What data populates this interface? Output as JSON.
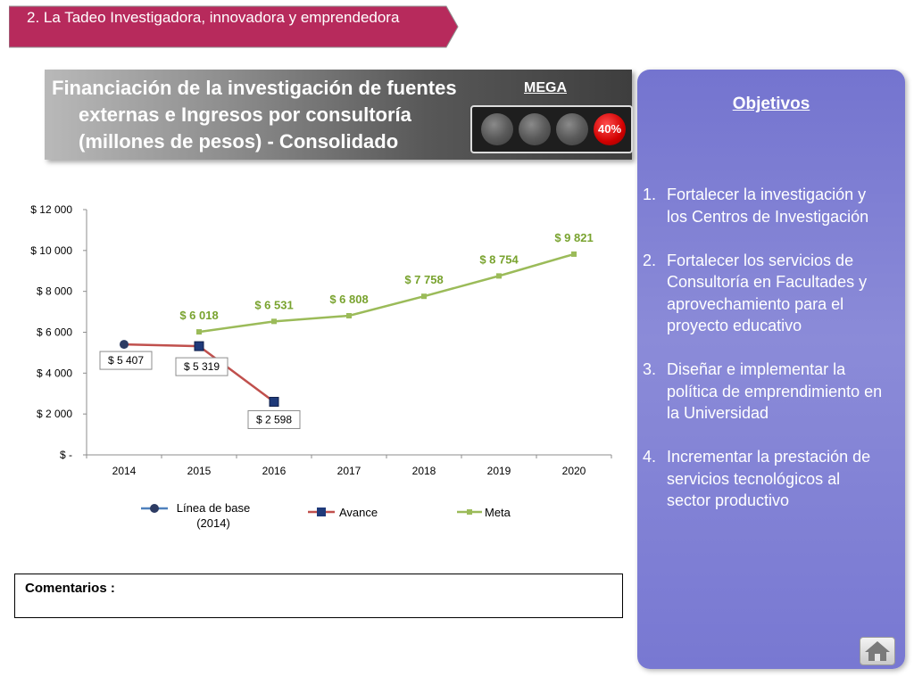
{
  "section": {
    "title": "2. La Tadeo Investigadora, innovadora y emprendedora",
    "color": "#b72a5c"
  },
  "header": {
    "title_line1": "Financiación de la investigación de fuentes",
    "title_line2": "externas e Ingresos por consultoría",
    "title_line3": "(millones de pesos) - Consolidado",
    "mega_label": "MEGA",
    "indicator_value": "40%"
  },
  "objectives": {
    "title": "Objetivos",
    "items": [
      {
        "n": "1.",
        "text": "Fortalecer la investigación y los Centros de Investigación"
      },
      {
        "n": "2.",
        "text": "Fortalecer los servicios de Consultoría en Facultades y aprovechamiento para el proyecto educativo"
      },
      {
        "n": "3.",
        "text": "Diseñar e implementar la política de emprendimiento en la Universidad"
      },
      {
        "n": "4.",
        "text": "Incrementar la prestación de servicios tecnológicos al sector productivo"
      }
    ],
    "home_icon": "home-icon"
  },
  "chart_data": {
    "type": "line",
    "categories": [
      "2014",
      "2015",
      "2016",
      "2017",
      "2018",
      "2019",
      "2020"
    ],
    "ylim": [
      0,
      12000
    ],
    "y_ticks": [
      {
        "value": 0,
        "label": "$ -"
      },
      {
        "value": 2000,
        "label": "$ 2 000"
      },
      {
        "value": 4000,
        "label": "$ 4 000"
      },
      {
        "value": 6000,
        "label": "$ 6 000"
      },
      {
        "value": 8000,
        "label": "$ 8 000"
      },
      {
        "value": 10000,
        "label": "$ 10 000"
      },
      {
        "value": 12000,
        "label": "$ 12 000"
      }
    ],
    "legend_position": "bottom",
    "series": [
      {
        "name": "Línea de base (2014)",
        "legend_line1": "Línea de base",
        "legend_line2": "(2014)",
        "color": "#c0504d",
        "marker": "#2d3b63",
        "points": [
          {
            "x": "2014",
            "y": 5407,
            "label": "$ 5 407"
          }
        ]
      },
      {
        "name": "Avance",
        "legend_line1": "Avance",
        "color": "#c0504d",
        "marker": "#1f3a7a",
        "points": [
          {
            "x": "2015",
            "y": 5319,
            "label": "$ 5 319"
          },
          {
            "x": "2016",
            "y": 2598,
            "label": "$ 2 598"
          }
        ]
      },
      {
        "name": "Meta",
        "legend_line1": "Meta",
        "color": "#9bbb59",
        "points": [
          {
            "x": "2015",
            "y": 6018,
            "label": "$ 6 018"
          },
          {
            "x": "2016",
            "y": 6531,
            "label": "$ 6 531"
          },
          {
            "x": "2017",
            "y": 6808,
            "label": "$ 6 808"
          },
          {
            "x": "2018",
            "y": 7758,
            "label": "$ 7 758"
          },
          {
            "x": "2019",
            "y": 8754,
            "label": "$ 8 754"
          },
          {
            "x": "2020",
            "y": 9821,
            "label": "$ 9 821"
          }
        ]
      }
    ]
  },
  "comments": {
    "label": "Comentarios :"
  }
}
